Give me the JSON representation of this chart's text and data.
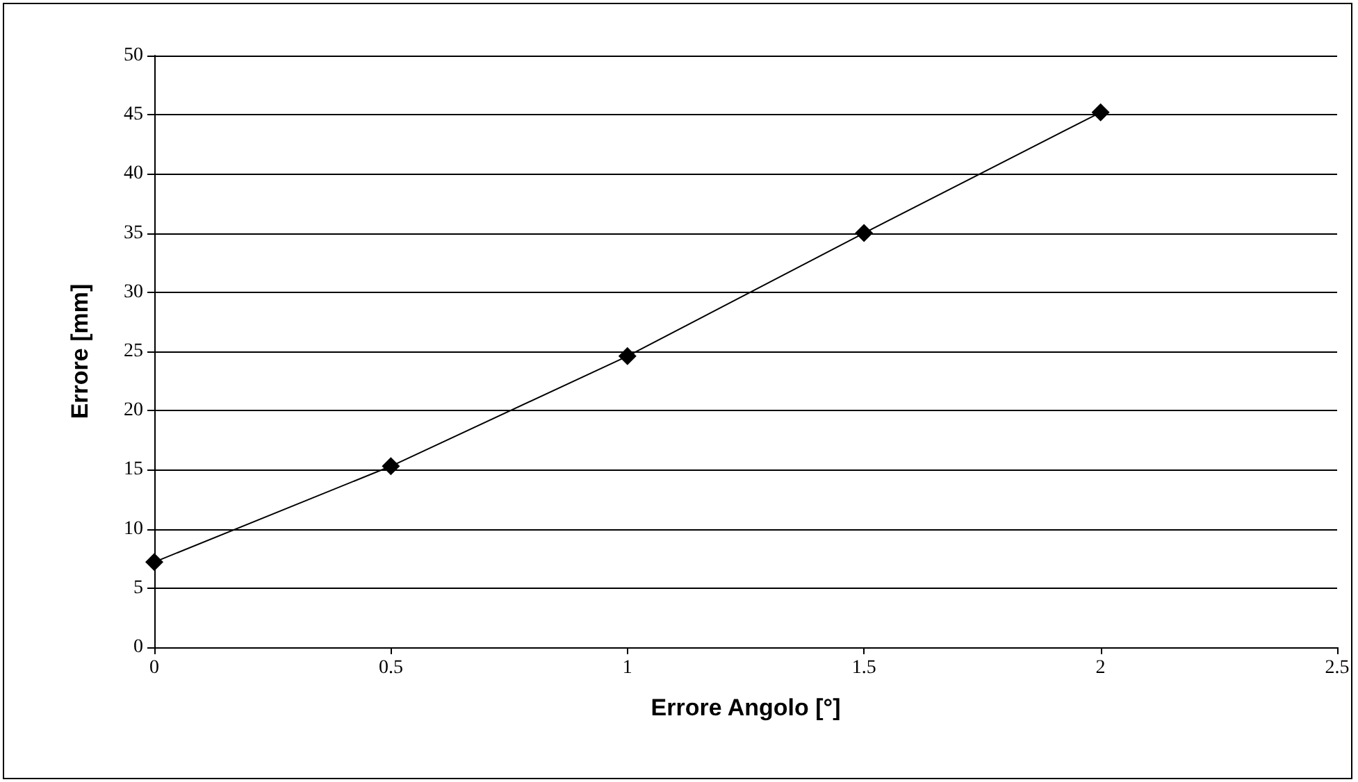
{
  "chart_data": {
    "type": "line",
    "xlabel": "Errore Angolo [°]",
    "ylabel": "Errore [mm]",
    "x": [
      0,
      0.5,
      1,
      1.5,
      2
    ],
    "series": [
      {
        "color": "#000000",
        "values": [
          7.2,
          15.3,
          24.6,
          35.0,
          45.2
        ]
      }
    ],
    "xlim": [
      0,
      2.5
    ],
    "xticks": [
      0,
      0.5,
      1,
      1.5,
      2,
      2.5
    ],
    "ylim": [
      0,
      50
    ],
    "yticks": [
      0,
      5,
      10,
      15,
      20,
      25,
      30,
      35,
      40,
      45,
      50
    ],
    "grid": "y",
    "marker": "diamond",
    "line_style": "solid"
  }
}
